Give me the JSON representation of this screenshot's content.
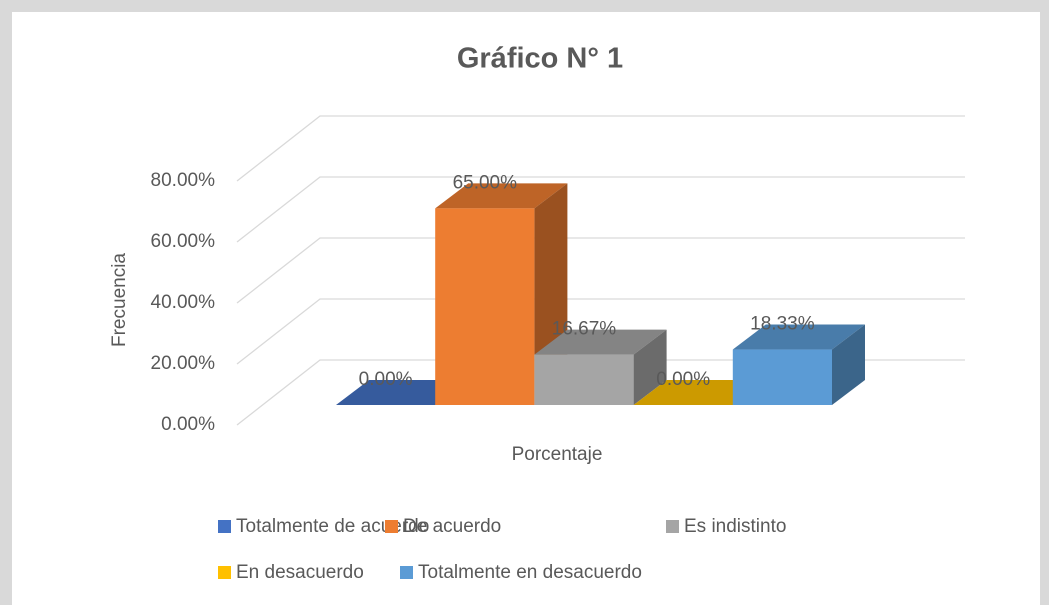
{
  "chart_data": {
    "type": "bar3d",
    "title": "Gráfico  N° 1",
    "y_label": "Frecuencia",
    "x_label": "Porcentaje",
    "categories": [
      "Porcentaje"
    ],
    "series": [
      {
        "name": "Totalmente de acuerdo",
        "color": "#4472c4",
        "values": [
          0
        ],
        "value_labels": [
          "0.00%"
        ]
      },
      {
        "name": "De acuerdo",
        "color": "#ed7d31",
        "values": [
          65
        ],
        "value_labels": [
          "65.00%"
        ]
      },
      {
        "name": "Es indistinto",
        "color": "#a5a5a5",
        "values": [
          16.67
        ],
        "value_labels": [
          "16.67%"
        ]
      },
      {
        "name": "En desacuerdo",
        "color": "#ffc000",
        "values": [
          0
        ],
        "value_labels": [
          "0.00%"
        ]
      },
      {
        "name": "Totalmente en desacuerdo",
        "color": "#5b9bd5",
        "values": [
          18.33
        ],
        "value_labels": [
          "18.33%"
        ]
      }
    ],
    "ylim": [
      0,
      80
    ],
    "yticks": [
      {
        "value": 0,
        "label": "0.00%"
      },
      {
        "value": 20,
        "label": "20.00%"
      },
      {
        "value": 40,
        "label": "40.00%"
      },
      {
        "value": 60,
        "label": "60.00%"
      },
      {
        "value": 80,
        "label": "80.00%"
      }
    ],
    "grid": true,
    "legend": "bottom"
  }
}
